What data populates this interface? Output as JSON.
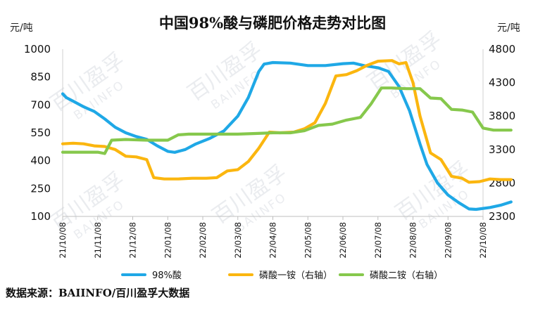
{
  "chart_data": {
    "type": "line",
    "title": "中国98%酸与磷肥价格走势对比图",
    "y_left_unit": "元/吨",
    "y_right_unit": "元/吨",
    "y_left_ticks": [
      "1000",
      "850",
      "700",
      "550",
      "400",
      "250",
      "100"
    ],
    "y_right_ticks": [
      "4800",
      "4300",
      "3800",
      "3300",
      "2800",
      "2300"
    ],
    "y_left_range": [
      100,
      1000
    ],
    "y_right_range": [
      2300,
      4800
    ],
    "x_ticks": [
      "21/10/08",
      "21/11/08",
      "21/12/08",
      "22/01/08",
      "22/02/08",
      "22/03/08",
      "22/04/08",
      "22/05/08",
      "22/06/08",
      "22/07/08",
      "22/08/08",
      "22/09/08",
      "22/10/08"
    ],
    "series": [
      {
        "name": "98%酸",
        "axis": "left",
        "color": "#1fa8e6",
        "points": [
          [
            0,
            760
          ],
          [
            0.1,
            740
          ],
          [
            0.3,
            720
          ],
          [
            0.6,
            690
          ],
          [
            0.9,
            665
          ],
          [
            1.2,
            625
          ],
          [
            1.5,
            580
          ],
          [
            1.8,
            550
          ],
          [
            2.1,
            530
          ],
          [
            2.4,
            515
          ],
          [
            2.7,
            480
          ],
          [
            3.0,
            450
          ],
          [
            3.2,
            445
          ],
          [
            3.5,
            460
          ],
          [
            3.8,
            490
          ],
          [
            4.2,
            520
          ],
          [
            4.6,
            560
          ],
          [
            5.0,
            640
          ],
          [
            5.3,
            740
          ],
          [
            5.6,
            880
          ],
          [
            5.75,
            920
          ],
          [
            6.0,
            928
          ],
          [
            6.5,
            925
          ],
          [
            7.0,
            912
          ],
          [
            7.5,
            912
          ],
          [
            8.0,
            922
          ],
          [
            8.3,
            925
          ],
          [
            8.6,
            912
          ],
          [
            9.0,
            900
          ],
          [
            9.3,
            880
          ],
          [
            9.6,
            800
          ],
          [
            9.9,
            670
          ],
          [
            10.2,
            490
          ],
          [
            10.4,
            380
          ],
          [
            10.7,
            280
          ],
          [
            11.0,
            215
          ],
          [
            11.3,
            175
          ],
          [
            11.6,
            140
          ],
          [
            11.8,
            138
          ],
          [
            12.2,
            148
          ],
          [
            12.5,
            160
          ],
          [
            12.8,
            178
          ]
        ]
      },
      {
        "name": "磷酸一铵（右轴）",
        "axis": "right",
        "color": "#fbb60f",
        "points": [
          [
            0,
            3385
          ],
          [
            0.3,
            3395
          ],
          [
            0.6,
            3385
          ],
          [
            0.9,
            3355
          ],
          [
            1.2,
            3345
          ],
          [
            1.5,
            3300
          ],
          [
            1.8,
            3200
          ],
          [
            2.1,
            3190
          ],
          [
            2.4,
            3150
          ],
          [
            2.6,
            2880
          ],
          [
            2.9,
            2860
          ],
          [
            3.3,
            2860
          ],
          [
            3.7,
            2870
          ],
          [
            4.1,
            2870
          ],
          [
            4.4,
            2880
          ],
          [
            4.7,
            2980
          ],
          [
            5.0,
            3000
          ],
          [
            5.3,
            3120
          ],
          [
            5.6,
            3320
          ],
          [
            5.9,
            3560
          ],
          [
            6.2,
            3550
          ],
          [
            6.6,
            3560
          ],
          [
            6.9,
            3610
          ],
          [
            7.2,
            3700
          ],
          [
            7.5,
            3990
          ],
          [
            7.8,
            4400
          ],
          [
            8.1,
            4420
          ],
          [
            8.4,
            4480
          ],
          [
            8.7,
            4560
          ],
          [
            9.0,
            4620
          ],
          [
            9.4,
            4630
          ],
          [
            9.6,
            4580
          ],
          [
            9.8,
            4600
          ],
          [
            10.0,
            4300
          ],
          [
            10.2,
            3800
          ],
          [
            10.5,
            3250
          ],
          [
            10.8,
            3150
          ],
          [
            11.1,
            2900
          ],
          [
            11.4,
            2870
          ],
          [
            11.6,
            2810
          ],
          [
            11.9,
            2820
          ],
          [
            12.2,
            2860
          ],
          [
            12.5,
            2850
          ],
          [
            12.8,
            2850
          ]
        ]
      },
      {
        "name": "磷酸二铵（右轴）",
        "axis": "right",
        "color": "#86c84c",
        "points": [
          [
            0,
            3260
          ],
          [
            0.5,
            3260
          ],
          [
            1.0,
            3260
          ],
          [
            1.2,
            3240
          ],
          [
            1.4,
            3440
          ],
          [
            1.8,
            3450
          ],
          [
            2.4,
            3440
          ],
          [
            3.0,
            3440
          ],
          [
            3.3,
            3520
          ],
          [
            3.6,
            3530
          ],
          [
            4.0,
            3530
          ],
          [
            4.5,
            3530
          ],
          [
            5.0,
            3530
          ],
          [
            5.5,
            3540
          ],
          [
            6.0,
            3550
          ],
          [
            6.5,
            3550
          ],
          [
            6.9,
            3580
          ],
          [
            7.3,
            3660
          ],
          [
            7.7,
            3680
          ],
          [
            8.1,
            3740
          ],
          [
            8.5,
            3780
          ],
          [
            8.8,
            3980
          ],
          [
            9.1,
            4220
          ],
          [
            9.4,
            4220
          ],
          [
            9.8,
            4210
          ],
          [
            10.2,
            4210
          ],
          [
            10.5,
            4070
          ],
          [
            10.8,
            4060
          ],
          [
            11.1,
            3900
          ],
          [
            11.4,
            3890
          ],
          [
            11.7,
            3860
          ],
          [
            12.0,
            3620
          ],
          [
            12.3,
            3590
          ],
          [
            12.8,
            3590
          ]
        ]
      }
    ],
    "legend_position": "bottom"
  },
  "watermarks": [
    "百川盈孚",
    "BAIINFO"
  ],
  "source_text": "数据来源：BAIINFO/百川盈孚大数据"
}
